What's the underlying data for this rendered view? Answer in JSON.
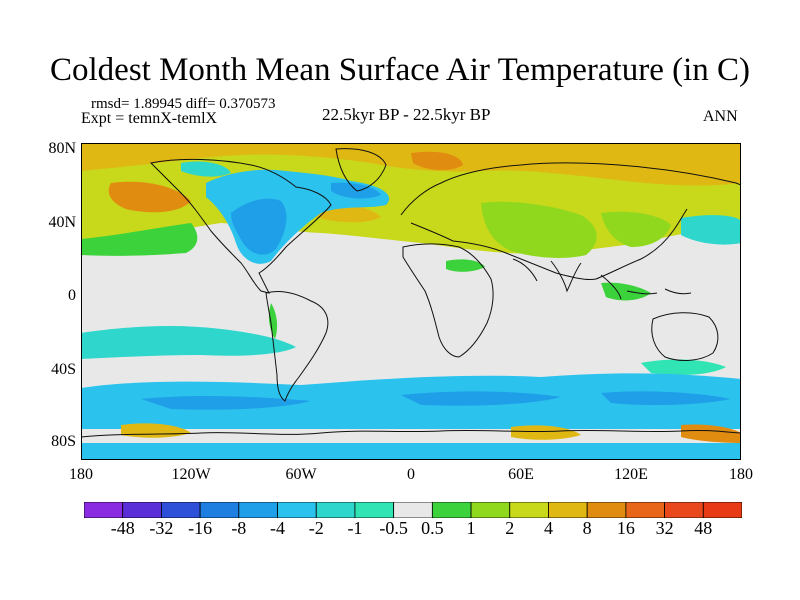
{
  "title": "Coldest Month Mean Surface Air Temperature (in C)",
  "stats_line": "rmsd= 1.89945 diff= 0.370573",
  "experiment_line": "Expt = temnX-temlX",
  "period_label": "22.5kyr BP - 22.5kyr BP",
  "season_label": "ANN",
  "lat_labels": [
    "80N",
    "40N",
    "0",
    "40S",
    "80S"
  ],
  "lon_labels": [
    "180",
    "120W",
    "60W",
    "0",
    "60E",
    "120E",
    "180"
  ],
  "colorbar": {
    "labels": [
      "-48",
      "-32",
      "-16",
      "-8",
      "-4",
      "-2",
      "-1",
      "-0.5",
      "0.5",
      "1",
      "2",
      "4",
      "8",
      "16",
      "32",
      "48"
    ],
    "colors": [
      "#8a2be2",
      "#5a2fd8",
      "#2e4fd8",
      "#1e7fe0",
      "#1e9fe8",
      "#2cc2ee",
      "#2fd6cc",
      "#30e4b4",
      "#e8e8e8",
      "#3cd23c",
      "#90d81e",
      "#c8d81a",
      "#e0b814",
      "#e08c10",
      "#e8661a",
      "#e8481c",
      "#e83a14"
    ]
  },
  "colors": {
    "land_neutral": "#e8e8e8",
    "coast": "#111111"
  }
}
